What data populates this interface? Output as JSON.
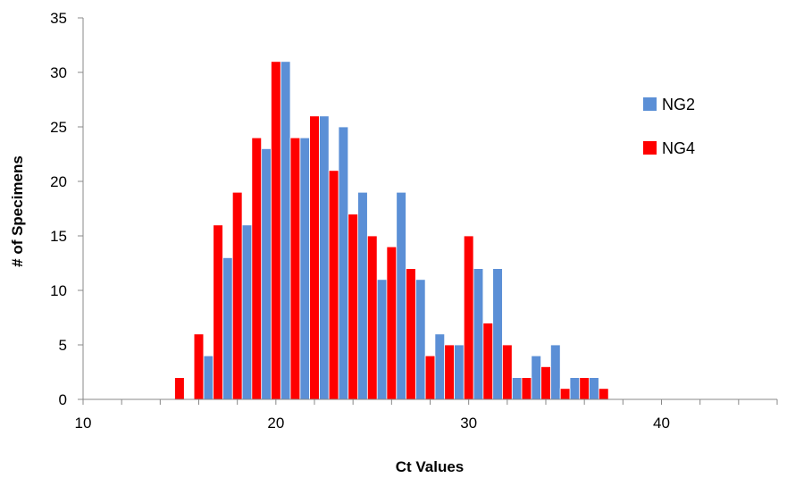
{
  "chart_data": {
    "type": "bar",
    "title": "",
    "xlabel": "Ct Values",
    "ylabel": "# of Specimens",
    "xlim": [
      10,
      46
    ],
    "ylim": [
      0,
      35
    ],
    "x_ticks": [
      10,
      20,
      30,
      40
    ],
    "y_ticks": [
      0,
      5,
      10,
      15,
      20,
      25,
      30,
      35
    ],
    "grid": false,
    "legend_position": "right",
    "x": [
      15,
      16,
      17,
      18,
      19,
      20,
      21,
      22,
      23,
      24,
      25,
      26,
      27,
      28,
      29,
      30,
      31,
      32,
      33,
      34,
      35,
      36,
      37
    ],
    "series": [
      {
        "name": "NG2",
        "color": "#5B8FD6",
        "values": [
          0,
          4,
          13,
          16,
          23,
          31,
          24,
          26,
          25,
          19,
          11,
          19,
          11,
          6,
          5,
          12,
          12,
          2,
          4,
          5,
          2,
          2,
          0
        ]
      },
      {
        "name": "NG4",
        "color": "#FF0000",
        "values": [
          2,
          6,
          16,
          19,
          24,
          31,
          24,
          26,
          21,
          17,
          15,
          14,
          12,
          4,
          5,
          15,
          7,
          5,
          2,
          3,
          1,
          2,
          1
        ]
      }
    ]
  }
}
